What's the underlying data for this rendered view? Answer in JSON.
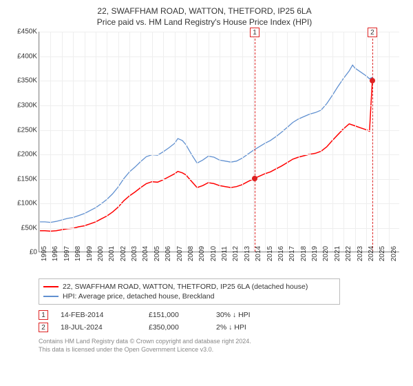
{
  "title_line1": "22, SWAFFHAM ROAD, WATTON, THETFORD, IP25 6LA",
  "title_line2": "Price paid vs. HM Land Registry's House Price Index (HPI)",
  "chart": {
    "type": "line",
    "background_color": "#ffffff",
    "grid_color": "#eeeeee",
    "axis_color": "#888888",
    "label_fontsize": 10,
    "x_min": 1995,
    "x_max": 2027,
    "x_ticks": [
      1995,
      1996,
      1997,
      1998,
      1999,
      2000,
      2001,
      2002,
      2003,
      2004,
      2005,
      2006,
      2007,
      2008,
      2009,
      2010,
      2011,
      2012,
      2013,
      2014,
      2015,
      2016,
      2017,
      2018,
      2019,
      2020,
      2021,
      2022,
      2023,
      2024,
      2025,
      2026
    ],
    "y_min": 0,
    "y_max": 450000,
    "y_ticks": [
      {
        "v": 0,
        "label": "£0"
      },
      {
        "v": 50000,
        "label": "£50K"
      },
      {
        "v": 100000,
        "label": "£100K"
      },
      {
        "v": 150000,
        "label": "£150K"
      },
      {
        "v": 200000,
        "label": "£200K"
      },
      {
        "v": 250000,
        "label": "£250K"
      },
      {
        "v": 300000,
        "label": "£300K"
      },
      {
        "v": 350000,
        "label": "£350K"
      },
      {
        "v": 400000,
        "label": "£400K"
      },
      {
        "v": 450000,
        "label": "£450K"
      }
    ],
    "series": [
      {
        "label": "22, SWAFFHAM ROAD, WATTON, THETFORD, IP25 6LA (detached house)",
        "color": "#ff0000",
        "line_width": 1.5,
        "points": [
          [
            1995.0,
            44000
          ],
          [
            1995.5,
            44000
          ],
          [
            1996.0,
            43000
          ],
          [
            1996.5,
            44000
          ],
          [
            1997.0,
            46000
          ],
          [
            1997.5,
            48000
          ],
          [
            1998.0,
            49000
          ],
          [
            1998.5,
            52000
          ],
          [
            1999.0,
            54000
          ],
          [
            1999.5,
            58000
          ],
          [
            2000.0,
            62000
          ],
          [
            2000.5,
            68000
          ],
          [
            2001.0,
            74000
          ],
          [
            2001.5,
            82000
          ],
          [
            2002.0,
            92000
          ],
          [
            2002.5,
            105000
          ],
          [
            2003.0,
            115000
          ],
          [
            2003.5,
            123000
          ],
          [
            2004.0,
            132000
          ],
          [
            2004.5,
            140000
          ],
          [
            2005.0,
            144000
          ],
          [
            2005.5,
            143000
          ],
          [
            2006.0,
            148000
          ],
          [
            2006.5,
            154000
          ],
          [
            2007.0,
            160000
          ],
          [
            2007.3,
            165000
          ],
          [
            2007.7,
            162000
          ],
          [
            2008.0,
            158000
          ],
          [
            2008.5,
            145000
          ],
          [
            2009.0,
            132000
          ],
          [
            2009.5,
            136000
          ],
          [
            2010.0,
            142000
          ],
          [
            2010.5,
            140000
          ],
          [
            2011.0,
            136000
          ],
          [
            2011.5,
            134000
          ],
          [
            2012.0,
            132000
          ],
          [
            2012.5,
            134000
          ],
          [
            2013.0,
            138000
          ],
          [
            2013.5,
            144000
          ],
          [
            2014.12,
            151000
          ],
          [
            2014.5,
            155000
          ],
          [
            2015.0,
            160000
          ],
          [
            2015.5,
            164000
          ],
          [
            2016.0,
            170000
          ],
          [
            2016.5,
            176000
          ],
          [
            2017.0,
            183000
          ],
          [
            2017.5,
            190000
          ],
          [
            2018.0,
            194000
          ],
          [
            2018.5,
            197000
          ],
          [
            2019.0,
            200000
          ],
          [
            2019.5,
            202000
          ],
          [
            2020.0,
            206000
          ],
          [
            2020.5,
            215000
          ],
          [
            2021.0,
            228000
          ],
          [
            2021.5,
            240000
          ],
          [
            2022.0,
            252000
          ],
          [
            2022.5,
            262000
          ],
          [
            2023.0,
            258000
          ],
          [
            2023.5,
            254000
          ],
          [
            2024.0,
            250000
          ],
          [
            2024.3,
            247000
          ],
          [
            2024.55,
            350000
          ]
        ]
      },
      {
        "label": "HPI: Average price, detached house, Breckland",
        "color": "#6090d0",
        "line_width": 1.3,
        "points": [
          [
            1995.0,
            62000
          ],
          [
            1995.5,
            62000
          ],
          [
            1996.0,
            61000
          ],
          [
            1996.5,
            63000
          ],
          [
            1997.0,
            66000
          ],
          [
            1997.5,
            69000
          ],
          [
            1998.0,
            71000
          ],
          [
            1998.5,
            75000
          ],
          [
            1999.0,
            79000
          ],
          [
            1999.5,
            85000
          ],
          [
            2000.0,
            91000
          ],
          [
            2000.5,
            99000
          ],
          [
            2001.0,
            108000
          ],
          [
            2001.5,
            119000
          ],
          [
            2002.0,
            133000
          ],
          [
            2002.5,
            150000
          ],
          [
            2003.0,
            164000
          ],
          [
            2003.5,
            174000
          ],
          [
            2004.0,
            185000
          ],
          [
            2004.5,
            195000
          ],
          [
            2005.0,
            199000
          ],
          [
            2005.5,
            198000
          ],
          [
            2006.0,
            205000
          ],
          [
            2006.5,
            213000
          ],
          [
            2007.0,
            222000
          ],
          [
            2007.3,
            232000
          ],
          [
            2007.7,
            228000
          ],
          [
            2008.0,
            220000
          ],
          [
            2008.5,
            200000
          ],
          [
            2009.0,
            182000
          ],
          [
            2009.5,
            188000
          ],
          [
            2010.0,
            196000
          ],
          [
            2010.5,
            194000
          ],
          [
            2011.0,
            188000
          ],
          [
            2011.5,
            186000
          ],
          [
            2012.0,
            184000
          ],
          [
            2012.5,
            186000
          ],
          [
            2013.0,
            192000
          ],
          [
            2013.5,
            200000
          ],
          [
            2014.0,
            208000
          ],
          [
            2014.5,
            215000
          ],
          [
            2015.0,
            222000
          ],
          [
            2015.5,
            228000
          ],
          [
            2016.0,
            236000
          ],
          [
            2016.5,
            245000
          ],
          [
            2017.0,
            255000
          ],
          [
            2017.5,
            265000
          ],
          [
            2018.0,
            272000
          ],
          [
            2018.5,
            277000
          ],
          [
            2019.0,
            282000
          ],
          [
            2019.5,
            285000
          ],
          [
            2020.0,
            290000
          ],
          [
            2020.5,
            303000
          ],
          [
            2021.0,
            320000
          ],
          [
            2021.5,
            338000
          ],
          [
            2022.0,
            355000
          ],
          [
            2022.5,
            370000
          ],
          [
            2022.8,
            382000
          ],
          [
            2023.0,
            376000
          ],
          [
            2023.5,
            368000
          ],
          [
            2024.0,
            360000
          ],
          [
            2024.3,
            354000
          ],
          [
            2024.55,
            357000
          ]
        ]
      }
    ],
    "sale_markers": [
      {
        "n": "1",
        "x": 2014.12,
        "y": 151000
      },
      {
        "n": "2",
        "x": 2024.55,
        "y": 350000
      }
    ]
  },
  "legend": {
    "border_color": "#bbbbbb"
  },
  "sales": [
    {
      "n": "1",
      "date": "14-FEB-2014",
      "price": "£151,000",
      "delta": "30% ↓ HPI"
    },
    {
      "n": "2",
      "date": "18-JUL-2024",
      "price": "£350,000",
      "delta": "2% ↓ HPI"
    }
  ],
  "footer": [
    "Contains HM Land Registry data © Crown copyright and database right 2024.",
    "This data is licensed under the Open Government Licence v3.0."
  ],
  "colors": {
    "marker_border": "#d22",
    "text": "#333333",
    "footer_text": "#888888"
  }
}
